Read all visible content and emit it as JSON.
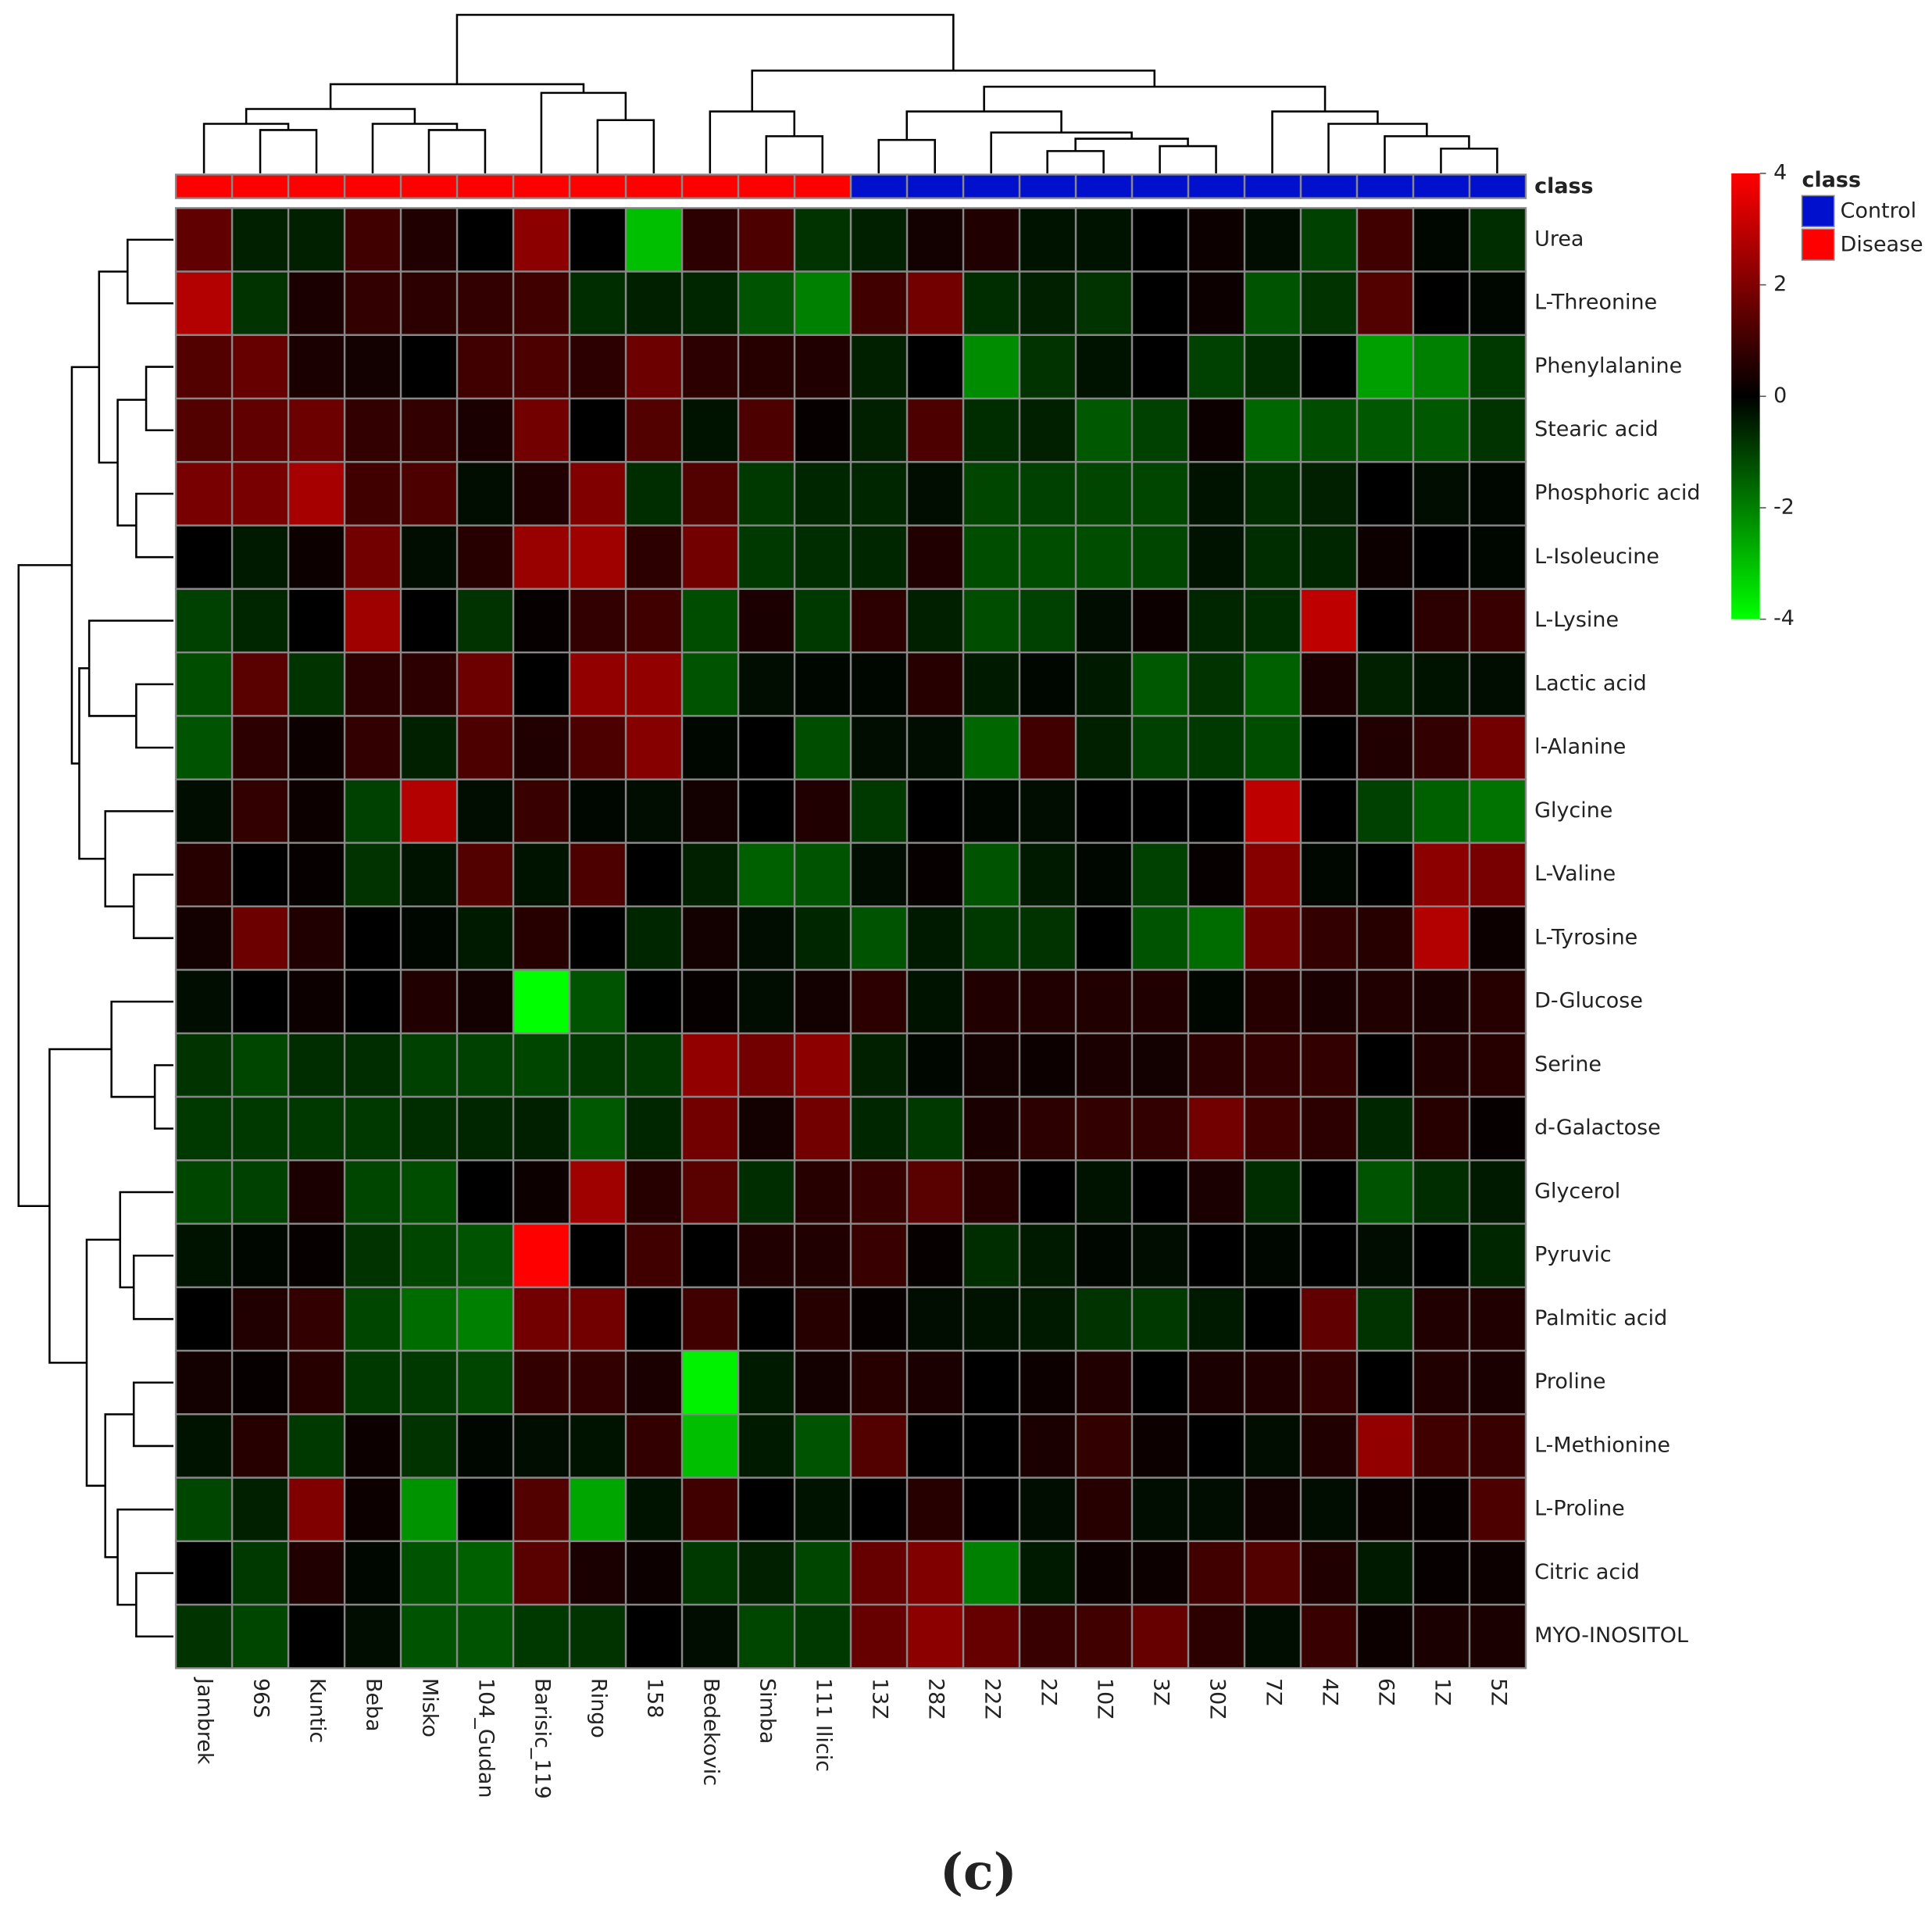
{
  "chart_data": {
    "type": "heatmap",
    "columns": [
      "Jambrek",
      "96S",
      "Kuntic",
      "Beba",
      "Misko",
      "104_Gudan",
      "Barisic_119",
      "Ringo",
      "158",
      "Bedekovic",
      "Simba",
      "111 Ilicic",
      "13Z",
      "28Z",
      "22Z",
      "2Z",
      "10Z",
      "3Z",
      "30Z",
      "7Z",
      "4Z",
      "6Z",
      "1Z",
      "5Z"
    ],
    "rows": [
      "Urea",
      "L-Threonine",
      "Phenylalanine",
      "Stearic acid",
      "Phosphoric acid",
      "L-Isoleucine",
      "L-Lysine",
      "Lactic acid",
      "l-Alanine",
      "Glycine",
      "L-Valine",
      "L-Tyrosine",
      "D-Glucose",
      "Serine",
      "d-Galactose",
      "Glycerol",
      "Pyruvic",
      "Palmitic acid",
      "Proline",
      "L-Methionine",
      "L-Proline",
      "Citric acid",
      "MYO-INOSITOL"
    ],
    "class_label": "class",
    "column_classes": [
      "Disease",
      "Disease",
      "Disease",
      "Disease",
      "Disease",
      "Disease",
      "Disease",
      "Disease",
      "Disease",
      "Disease",
      "Disease",
      "Disease",
      "Control",
      "Control",
      "Control",
      "Control",
      "Control",
      "Control",
      "Control",
      "Control",
      "Control",
      "Control",
      "Control",
      "Control"
    ],
    "legend_title": "class",
    "legend": [
      {
        "name": "Control",
        "color": "#0010cc"
      },
      {
        "name": "Disease",
        "color": "#ff0000"
      }
    ],
    "colors": {
      "low": "#00ff00",
      "mid": "#000000",
      "high": "#ff0000"
    },
    "zlim": [
      -4,
      4
    ],
    "zticks": [
      4,
      2,
      0,
      -2,
      -4
    ],
    "values": [
      [
        1.5,
        -0.5,
        -0.5,
        1,
        0.5,
        0,
        2.2,
        0,
        -3,
        0.7,
        1.2,
        -0.8,
        -0.5,
        0.3,
        0.5,
        -0.3,
        -0.3,
        0,
        0.2,
        -0.2,
        -1,
        1,
        -0.1,
        -0.7
      ],
      [
        2.8,
        -0.8,
        0.4,
        0.8,
        0.7,
        0.8,
        1,
        -0.7,
        -0.5,
        -0.6,
        -1.3,
        -2,
        1,
        1.8,
        -0.7,
        -0.5,
        -0.8,
        0,
        0.2,
        -1.3,
        -0.8,
        1.3,
        0,
        -0.1
      ],
      [
        1.3,
        1.6,
        0.4,
        0.3,
        0,
        1,
        1.2,
        0.7,
        1.7,
        0.7,
        0.6,
        0.5,
        -0.5,
        0,
        -2.2,
        -0.8,
        -0.3,
        0,
        -1,
        -0.7,
        0,
        -2.5,
        -2,
        -0.9
      ],
      [
        1.3,
        1.5,
        1.7,
        0.8,
        0.8,
        0.4,
        1.8,
        0,
        1.3,
        -0.3,
        1.2,
        0.1,
        -0.5,
        1.2,
        -0.7,
        -0.5,
        -1.4,
        -1,
        0.2,
        -1.6,
        -1.2,
        -1.4,
        -1.4,
        -0.8
      ],
      [
        1.9,
        1.9,
        2.6,
        1,
        1.2,
        -0.2,
        0.5,
        2,
        -0.7,
        1.3,
        -0.9,
        -0.6,
        -0.6,
        -0.2,
        -1.1,
        -1,
        -1.1,
        -1.1,
        -0.3,
        -0.7,
        -0.5,
        0,
        -0.2,
        -0.1
      ],
      [
        0,
        -0.4,
        0.2,
        1.8,
        -0.2,
        0.6,
        2.4,
        2.5,
        0.7,
        1.8,
        -0.9,
        -0.7,
        -0.6,
        0.5,
        -1.2,
        -1.2,
        -1.2,
        -1.1,
        -0.3,
        -0.7,
        -0.6,
        0.2,
        0,
        -0.1
      ],
      [
        -1,
        -0.6,
        0,
        2.5,
        0,
        -0.8,
        0.1,
        0.8,
        1,
        -1.2,
        0.4,
        -0.9,
        0.7,
        -0.5,
        -1.2,
        -1,
        -0.2,
        0.2,
        -0.6,
        -0.7,
        3,
        0,
        0.7,
        0.9
      ],
      [
        -1.2,
        1.4,
        -0.8,
        0.7,
        0.7,
        1.7,
        0,
        2.3,
        2.3,
        -1.3,
        -0.2,
        -0.1,
        -0.1,
        0.6,
        -0.4,
        -0.1,
        -0.4,
        -1.4,
        -0.8,
        -1.5,
        0.4,
        -0.5,
        -0.3,
        -0.2
      ],
      [
        -1.3,
        0.7,
        0.2,
        0.8,
        -0.5,
        1.2,
        0.5,
        1.2,
        2.1,
        -0.1,
        0,
        -1.2,
        -0.2,
        -0.2,
        -1.6,
        1,
        -0.5,
        -1,
        -0.9,
        -1.2,
        0,
        0.5,
        0.8,
        1.8
      ],
      [
        -0.2,
        0.8,
        0.2,
        -1,
        2.8,
        -0.2,
        0.9,
        -0.1,
        -0.2,
        0.3,
        0,
        0.5,
        -0.9,
        0,
        -0.1,
        -0.2,
        0,
        0,
        0,
        3,
        0,
        -1,
        -1.5,
        -1.8
      ],
      [
        0.6,
        0,
        0.1,
        -0.8,
        -0.3,
        1.3,
        -0.3,
        1.2,
        0,
        -0.5,
        -1.5,
        -1.3,
        -0.2,
        0.1,
        -1.3,
        -0.4,
        -0.1,
        -1,
        0.1,
        2.1,
        -0.1,
        0,
        2.2,
        1.9
      ],
      [
        0.3,
        1.7,
        0.5,
        0,
        -0.1,
        -0.4,
        0.6,
        0,
        -0.6,
        0.3,
        -0.2,
        -0.6,
        -1.3,
        -0.4,
        -0.9,
        -0.8,
        0,
        -1.3,
        -1.7,
        1.8,
        0.8,
        0.6,
        2.8,
        0.2
      ],
      [
        -0.2,
        0,
        0.2,
        0,
        0.5,
        0.3,
        -4,
        -1.3,
        0,
        0.1,
        -0.2,
        0.3,
        0.7,
        -0.3,
        0.5,
        0.5,
        0.5,
        0.5,
        -0.1,
        0.6,
        0.4,
        0.5,
        0.4,
        0.6
      ],
      [
        -0.8,
        -1.1,
        -0.7,
        -0.7,
        -1,
        -1,
        -1.1,
        -0.9,
        -0.9,
        2.3,
        1.8,
        2.2,
        -0.5,
        -0.1,
        0.3,
        0.2,
        0.4,
        0.3,
        0.7,
        0.8,
        0.8,
        0,
        0.5,
        0.6
      ],
      [
        -0.9,
        -0.9,
        -0.9,
        -0.9,
        -0.7,
        -0.6,
        -0.5,
        -1.4,
        -0.6,
        1.8,
        0.3,
        1.8,
        -0.6,
        -0.9,
        0.4,
        0.7,
        0.8,
        0.8,
        1.8,
        1,
        0.7,
        -0.6,
        0.6,
        0.1
      ],
      [
        -1.1,
        -1,
        0.4,
        -1.1,
        -1.2,
        0,
        0.2,
        2.5,
        0.6,
        1.4,
        -0.7,
        0.6,
        0.9,
        1.4,
        0.6,
        0,
        -0.3,
        0,
        0.4,
        -0.7,
        0,
        -1.3,
        -0.7,
        -0.4
      ],
      [
        -0.3,
        -0.1,
        0.1,
        -0.8,
        -1.1,
        -1.3,
        4,
        0,
        1,
        0,
        0.5,
        0.5,
        0.9,
        0.1,
        -0.7,
        -0.4,
        -0.1,
        -0.2,
        0,
        -0.1,
        0,
        -0.2,
        0,
        -0.6
      ],
      [
        0,
        0.5,
        0.8,
        -1.1,
        -1.7,
        -2,
        1.8,
        1.8,
        0,
        1,
        0,
        0.6,
        0.1,
        -0.2,
        -0.3,
        -0.4,
        -0.8,
        -0.9,
        -0.4,
        0,
        1.5,
        -0.8,
        0.5,
        0.5
      ],
      [
        0.3,
        0.1,
        0.6,
        -0.9,
        -0.9,
        -1.1,
        0.8,
        0.8,
        0.4,
        -3.8,
        -0.4,
        0.3,
        0.6,
        0.4,
        0,
        0.2,
        0.5,
        0,
        0.4,
        0.5,
        0.8,
        0,
        0.5,
        0.4
      ],
      [
        -0.3,
        0.6,
        -0.9,
        0.2,
        -0.8,
        -0.1,
        -0.2,
        -0.3,
        0.8,
        -3,
        -0.4,
        -1.3,
        1.3,
        0,
        0,
        0.4,
        0.8,
        0.2,
        0,
        -0.2,
        0.5,
        2.3,
        1,
        0.9
      ],
      [
        -1.1,
        -0.5,
        2,
        0.2,
        -2.3,
        0,
        1.3,
        -2.6,
        -0.3,
        1,
        0,
        -0.3,
        0,
        0.6,
        0,
        -0.2,
        0.6,
        -0.2,
        -0.2,
        0.3,
        -0.2,
        0.2,
        0.1,
        1.2
      ],
      [
        0,
        -0.9,
        0.5,
        -0.1,
        -1.3,
        -1.5,
        1.4,
        0.4,
        0.2,
        -0.9,
        -0.5,
        -1.1,
        1.6,
        2,
        -2,
        -0.4,
        0.2,
        0.2,
        1,
        1.3,
        0.5,
        -0.4,
        0.1,
        0.2
      ],
      [
        -0.8,
        -1.1,
        0,
        -0.2,
        -1.3,
        -1.3,
        -0.9,
        -0.8,
        0,
        -0.2,
        -1.1,
        -0.9,
        1.6,
        2.2,
        1.6,
        0.9,
        1,
        1.6,
        0.7,
        -0.2,
        0.9,
        0.2,
        0.4,
        0.4
      ]
    ],
    "panel_label": "(c)"
  }
}
